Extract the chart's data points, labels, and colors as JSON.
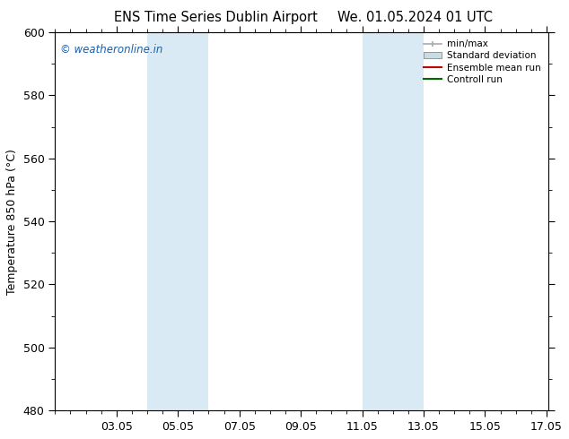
{
  "title_left": "ENS Time Series Dublin Airport",
  "title_right": "We. 01.05.2024 01 UTC",
  "ylabel": "Temperature 850 hPa (°C)",
  "ylim": [
    480,
    600
  ],
  "yticks": [
    480,
    500,
    520,
    540,
    560,
    580,
    600
  ],
  "xlim": [
    1.0,
    17.05
  ],
  "xtick_labels": [
    "03.05",
    "05.05",
    "07.05",
    "09.05",
    "11.05",
    "13.05",
    "15.05",
    "17.05"
  ],
  "xtick_positions": [
    3,
    5,
    7,
    9,
    11,
    13,
    15,
    17
  ],
  "shaded_bands": [
    {
      "x_start": 4.0,
      "x_end": 6.0,
      "color": "#daeaf5"
    },
    {
      "x_start": 11.0,
      "x_end": 13.0,
      "color": "#daeaf5"
    }
  ],
  "watermark_text": "© weatheronline.in",
  "watermark_color": "#1a5fa8",
  "watermark_fontsize": 8.5,
  "legend_items": [
    {
      "label": "min/max",
      "color": "#aaaaaa",
      "style": "line_with_caps"
    },
    {
      "label": "Standard deviation",
      "color": "#c8dce8",
      "style": "filled_box"
    },
    {
      "label": "Ensemble mean run",
      "color": "#cc0000",
      "style": "line"
    },
    {
      "label": "Controll run",
      "color": "#006600",
      "style": "line"
    }
  ],
  "background_color": "#ffffff",
  "plot_bg_color": "#ffffff",
  "font_size": 9,
  "title_font_size": 10.5
}
